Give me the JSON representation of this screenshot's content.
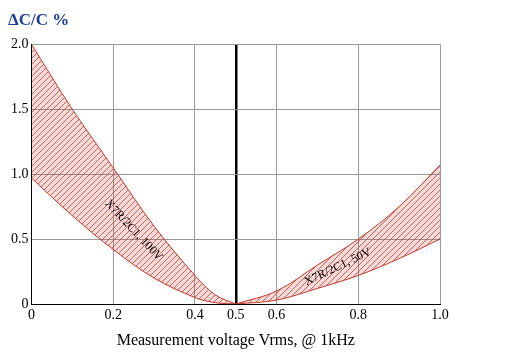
{
  "chart_data": {
    "type": "line",
    "ylabel": "ΔC/C %",
    "xlabel": "Measurement voltage Vrms, @ 1kHz",
    "xlim": [
      0,
      1
    ],
    "xticks": [
      0,
      0.2,
      0.4,
      0.5,
      0.6,
      0.8,
      {
        "value": 1,
        "label": "1.0"
      }
    ],
    "ylim": [
      0,
      2
    ],
    "yticks": [
      0,
      0.5,
      {
        "value": 1,
        "label": "1.0"
      },
      1.5,
      {
        "value": 2,
        "label": "2.0"
      }
    ],
    "grid": true,
    "legend": "none",
    "series": [
      {
        "name": "X7R/2C1, 100V",
        "color": "#c0392b",
        "x": [
          0,
          0.1,
          0.2,
          0.3,
          0.4,
          0.45,
          0.5
        ],
        "lower": [
          0.97,
          0.68,
          0.42,
          0.2,
          0.05,
          0.01,
          0
        ],
        "upper": [
          2.0,
          1.5,
          1.05,
          0.6,
          0.22,
          0.07,
          0
        ]
      },
      {
        "name": "X7R/2C1, 50V",
        "color": "#c0392b",
        "x": [
          0.5,
          0.6,
          0.7,
          0.8,
          0.9,
          1.0
        ],
        "lower": [
          0,
          0.03,
          0.12,
          0.22,
          0.35,
          0.5
        ],
        "upper": [
          0,
          0.1,
          0.3,
          0.5,
          0.75,
          1.07
        ]
      }
    ]
  }
}
